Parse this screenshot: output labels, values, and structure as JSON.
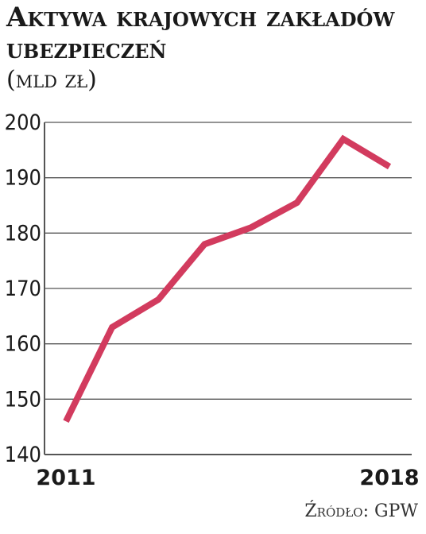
{
  "title": "Aktywa krajowych zakładów ubezpieczeń",
  "subtitle": "(mld zł)",
  "source": "Źródło: GPW",
  "colors": {
    "line": "#d23b5e",
    "grid": "#555555",
    "text": "#1a1a1a"
  },
  "chart_data": {
    "type": "line",
    "title": "Aktywa krajowych zakładów ubezpieczeń",
    "subtitle": "(mld zł)",
    "xlabel": "",
    "ylabel": "",
    "x": [
      2011,
      2012,
      2013,
      2014,
      2015,
      2016,
      2017,
      2018
    ],
    "x_tick_labels": [
      "2011",
      "2018"
    ],
    "values": [
      146,
      163,
      168,
      178,
      181,
      185.5,
      197,
      192
    ],
    "ylim": [
      140,
      200
    ],
    "yticks": [
      140,
      150,
      160,
      170,
      180,
      190,
      200
    ],
    "grid": "horizontal",
    "legend": "none"
  }
}
